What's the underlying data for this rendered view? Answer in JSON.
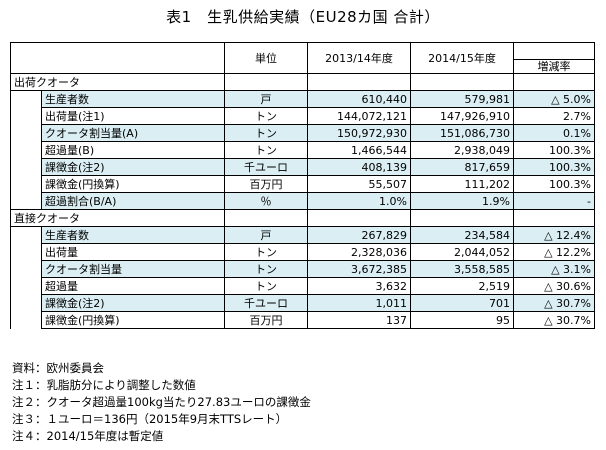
{
  "title": "表1　生乳供給実績（EU28カ国 合計）",
  "header": {
    "unit": "単位",
    "col1": "2013/14年度",
    "col2": "2014/15年度",
    "col3": "増減率"
  },
  "sections": [
    {
      "label": "出荷クオータ",
      "rows": [
        {
          "name": "生産者数",
          "unit": "戸",
          "v1": "610,440",
          "v2": "579,981",
          "v3": "△ 5.0%",
          "shaded": true
        },
        {
          "name": "出荷量(注1)",
          "unit": "トン",
          "v1": "144,072,121",
          "v2": "147,926,910",
          "v3": "2.7%",
          "shaded": false
        },
        {
          "name": "クオータ割当量(A)",
          "unit": "トン",
          "v1": "150,972,930",
          "v2": "151,086,730",
          "v3": "0.1%",
          "shaded": true
        },
        {
          "name": "超過量(B)",
          "unit": "トン",
          "v1": "1,466,544",
          "v2": "2,938,049",
          "v3": "100.3%",
          "shaded": false
        },
        {
          "name": "課徴金(注2)",
          "unit": "千ユーロ",
          "v1": "408,139",
          "v2": "817,659",
          "v3": "100.3%",
          "shaded": true
        },
        {
          "name": "課徴金(円換算)",
          "unit": "百万円",
          "v1": "55,507",
          "v2": "111,202",
          "v3": "100.3%",
          "shaded": false
        },
        {
          "name": "超過割合(B/A)",
          "unit": "％",
          "v1": "1.0%",
          "v2": "1.9%",
          "v3": "-",
          "shaded": true
        }
      ]
    },
    {
      "label": "直接クオータ",
      "rows": [
        {
          "name": "生産者数",
          "unit": "戸",
          "v1": "267,829",
          "v2": "234,584",
          "v3": "△ 12.4%",
          "shaded": true
        },
        {
          "name": "出荷量",
          "unit": "トン",
          "v1": "2,328,036",
          "v2": "2,044,052",
          "v3": "△ 12.2%",
          "shaded": false
        },
        {
          "name": "クオータ割当量",
          "unit": "トン",
          "v1": "3,672,385",
          "v2": "3,558,585",
          "v3": "△ 3.1%",
          "shaded": true
        },
        {
          "name": "超過量",
          "unit": "トン",
          "v1": "3,632",
          "v2": "2,519",
          "v3": "△ 30.6%",
          "shaded": false
        },
        {
          "name": "課徴金(注2)",
          "unit": "千ユーロ",
          "v1": "1,011",
          "v2": "701",
          "v3": "△ 30.7%",
          "shaded": true
        },
        {
          "name": "課徴金(円換算)",
          "unit": "百万円",
          "v1": "137",
          "v2": "95",
          "v3": "△ 30.7%",
          "shaded": false
        }
      ]
    }
  ],
  "notes": [
    "資料：欧州委員会",
    "注１：乳脂肪分により調整した数値",
    "注２：クオータ超過量100kg当たり27.83ユーロの課徴金",
    "注３：１ユーロ＝136円（2015年9月末TTSレート）",
    "注４：2014/15年度は暫定値"
  ]
}
